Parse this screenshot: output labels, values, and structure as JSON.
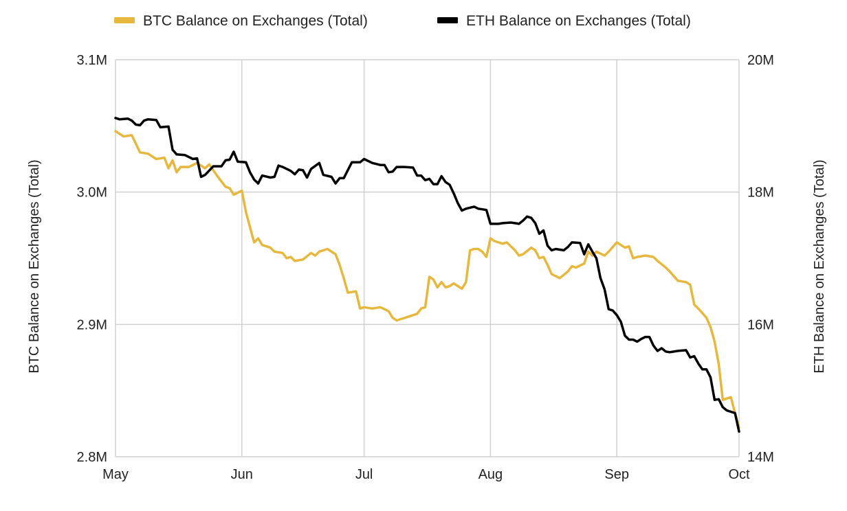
{
  "chart_data": {
    "type": "line",
    "legend": {
      "placement": "top-center"
    },
    "grid": true,
    "x": {
      "start": "2023-05-01",
      "end": "2023-10-01",
      "tick_labels": [
        "May",
        "Jun",
        "Jul",
        "Aug",
        "Sep",
        "Oct"
      ],
      "tick_dates": [
        "2023-05-01",
        "2023-06-01",
        "2023-07-01",
        "2023-08-01",
        "2023-09-01",
        "2023-10-01"
      ]
    },
    "y_left": {
      "label": "BTC Balance on Exchanges (Total)",
      "range": [
        2800000,
        3100000
      ],
      "tick_labels": [
        "2.8M",
        "2.9M",
        "3.0M",
        "3.1M"
      ],
      "tick_values": [
        2800000,
        2900000,
        3000000,
        3100000
      ]
    },
    "y_right": {
      "label": "ETH Balance on Exchanges (Total)",
      "range": [
        14000000,
        20000000
      ],
      "tick_labels": [
        "14M",
        "16M",
        "18M",
        "20M"
      ],
      "tick_values": [
        14000000,
        16000000,
        18000000,
        20000000
      ]
    },
    "series": [
      {
        "name": "BTC Balance on Exchanges (Total)",
        "axis": "left",
        "color": "#e6b83e",
        "points": [
          [
            "2023-05-01",
            3046000
          ],
          [
            "2023-05-03",
            3042000
          ],
          [
            "2023-05-05",
            3043000
          ],
          [
            "2023-05-07",
            3030000
          ],
          [
            "2023-05-09",
            3029000
          ],
          [
            "2023-05-11",
            3025000
          ],
          [
            "2023-05-13",
            3026000
          ],
          [
            "2023-05-14",
            3018000
          ],
          [
            "2023-05-15",
            3024000
          ],
          [
            "2023-05-16",
            3015000
          ],
          [
            "2023-05-17",
            3019000
          ],
          [
            "2023-05-19",
            3019000
          ],
          [
            "2023-05-21",
            3022000
          ],
          [
            "2023-05-23",
            3018000
          ],
          [
            "2023-05-24",
            3021000
          ],
          [
            "2023-05-26",
            3012000
          ],
          [
            "2023-05-28",
            3004000
          ],
          [
            "2023-05-29",
            3003000
          ],
          [
            "2023-05-30",
            2998000
          ],
          [
            "2023-06-01",
            3001000
          ],
          [
            "2023-06-02",
            2985000
          ],
          [
            "2023-06-04",
            2962000
          ],
          [
            "2023-06-05",
            2965000
          ],
          [
            "2023-06-06",
            2960000
          ],
          [
            "2023-06-08",
            2958000
          ],
          [
            "2023-06-09",
            2955000
          ],
          [
            "2023-06-11",
            2954000
          ],
          [
            "2023-06-12",
            2950000
          ],
          [
            "2023-06-13",
            2951000
          ],
          [
            "2023-06-14",
            2948000
          ],
          [
            "2023-06-16",
            2949000
          ],
          [
            "2023-06-18",
            2954000
          ],
          [
            "2023-06-19",
            2952000
          ],
          [
            "2023-06-20",
            2955000
          ],
          [
            "2023-06-22",
            2957000
          ],
          [
            "2023-06-24",
            2953000
          ],
          [
            "2023-06-25",
            2945000
          ],
          [
            "2023-06-26",
            2935000
          ],
          [
            "2023-06-27",
            2924000
          ],
          [
            "2023-06-29",
            2925000
          ],
          [
            "2023-06-30",
            2912000
          ],
          [
            "2023-07-01",
            2913000
          ],
          [
            "2023-07-03",
            2912000
          ],
          [
            "2023-07-05",
            2913000
          ],
          [
            "2023-07-07",
            2910000
          ],
          [
            "2023-07-08",
            2905000
          ],
          [
            "2023-07-09",
            2903000
          ],
          [
            "2023-07-10",
            2904000
          ],
          [
            "2023-07-12",
            2906000
          ],
          [
            "2023-07-14",
            2908000
          ],
          [
            "2023-07-15",
            2912000
          ],
          [
            "2023-07-16",
            2913000
          ],
          [
            "2023-07-17",
            2936000
          ],
          [
            "2023-07-18",
            2934000
          ],
          [
            "2023-07-19",
            2928000
          ],
          [
            "2023-07-20",
            2932000
          ],
          [
            "2023-07-21",
            2928000
          ],
          [
            "2023-07-22",
            2929000
          ],
          [
            "2023-07-23",
            2931000
          ],
          [
            "2023-07-24",
            2929000
          ],
          [
            "2023-07-25",
            2927000
          ],
          [
            "2023-07-26",
            2932000
          ],
          [
            "2023-07-27",
            2956000
          ],
          [
            "2023-07-28",
            2957000
          ],
          [
            "2023-07-29",
            2957000
          ],
          [
            "2023-07-30",
            2955000
          ],
          [
            "2023-07-31",
            2951000
          ],
          [
            "2023-08-01",
            2965000
          ],
          [
            "2023-08-02",
            2963000
          ],
          [
            "2023-08-04",
            2961000
          ],
          [
            "2023-08-05",
            2962000
          ],
          [
            "2023-08-07",
            2956000
          ],
          [
            "2023-08-08",
            2952000
          ],
          [
            "2023-08-09",
            2953000
          ],
          [
            "2023-08-11",
            2958000
          ],
          [
            "2023-08-12",
            2956000
          ],
          [
            "2023-08-13",
            2950000
          ],
          [
            "2023-08-14",
            2951000
          ],
          [
            "2023-08-15",
            2945000
          ],
          [
            "2023-08-16",
            2938000
          ],
          [
            "2023-08-18",
            2935000
          ],
          [
            "2023-08-20",
            2940000
          ],
          [
            "2023-08-21",
            2944000
          ],
          [
            "2023-08-22",
            2943000
          ],
          [
            "2023-08-24",
            2946000
          ],
          [
            "2023-08-25",
            2955000
          ],
          [
            "2023-08-26",
            2952000
          ],
          [
            "2023-08-27",
            2955000
          ],
          [
            "2023-08-29",
            2952000
          ],
          [
            "2023-08-30",
            2955000
          ],
          [
            "2023-09-01",
            2962000
          ],
          [
            "2023-09-02",
            2960000
          ],
          [
            "2023-09-03",
            2958000
          ],
          [
            "2023-09-04",
            2959000
          ],
          [
            "2023-09-05",
            2950000
          ],
          [
            "2023-09-06",
            2951000
          ],
          [
            "2023-09-08",
            2952000
          ],
          [
            "2023-09-10",
            2951000
          ],
          [
            "2023-09-11",
            2948000
          ],
          [
            "2023-09-13",
            2943000
          ],
          [
            "2023-09-14",
            2940000
          ],
          [
            "2023-09-16",
            2933000
          ],
          [
            "2023-09-18",
            2932000
          ],
          [
            "2023-09-19",
            2930000
          ],
          [
            "2023-09-20",
            2915000
          ],
          [
            "2023-09-21",
            2912000
          ],
          [
            "2023-09-23",
            2905000
          ],
          [
            "2023-09-24",
            2898000
          ],
          [
            "2023-09-25",
            2887000
          ],
          [
            "2023-09-26",
            2870000
          ],
          [
            "2023-09-27",
            2843000
          ],
          [
            "2023-09-28",
            2844000
          ],
          [
            "2023-09-29",
            2845000
          ],
          [
            "2023-09-30",
            2833000
          ],
          [
            "2023-10-01",
            2822000
          ]
        ]
      },
      {
        "name": "ETH Balance on Exchanges (Total)",
        "axis": "right",
        "color": "#000000",
        "points": [
          [
            "2023-05-01",
            19120000
          ],
          [
            "2023-05-02",
            19100000
          ],
          [
            "2023-05-04",
            19110000
          ],
          [
            "2023-05-05",
            19080000
          ],
          [
            "2023-05-06",
            19020000
          ],
          [
            "2023-05-07",
            19010000
          ],
          [
            "2023-05-08",
            19080000
          ],
          [
            "2023-05-09",
            19100000
          ],
          [
            "2023-05-11",
            19090000
          ],
          [
            "2023-05-12",
            18980000
          ],
          [
            "2023-05-14",
            18990000
          ],
          [
            "2023-05-15",
            18640000
          ],
          [
            "2023-05-16",
            18570000
          ],
          [
            "2023-05-18",
            18560000
          ],
          [
            "2023-05-20",
            18500000
          ],
          [
            "2023-05-21",
            18510000
          ],
          [
            "2023-05-22",
            18230000
          ],
          [
            "2023-05-23",
            18260000
          ],
          [
            "2023-05-25",
            18390000
          ],
          [
            "2023-05-27",
            18390000
          ],
          [
            "2023-05-28",
            18480000
          ],
          [
            "2023-05-29",
            18490000
          ],
          [
            "2023-05-30",
            18610000
          ],
          [
            "2023-05-31",
            18460000
          ],
          [
            "2023-06-02",
            18450000
          ],
          [
            "2023-06-03",
            18300000
          ],
          [
            "2023-06-04",
            18190000
          ],
          [
            "2023-06-05",
            18130000
          ],
          [
            "2023-06-06",
            18250000
          ],
          [
            "2023-06-08",
            18220000
          ],
          [
            "2023-06-09",
            18230000
          ],
          [
            "2023-06-10",
            18400000
          ],
          [
            "2023-06-11",
            18380000
          ],
          [
            "2023-06-13",
            18320000
          ],
          [
            "2023-06-14",
            18270000
          ],
          [
            "2023-06-15",
            18340000
          ],
          [
            "2023-06-16",
            18330000
          ],
          [
            "2023-06-17",
            18220000
          ],
          [
            "2023-06-18",
            18350000
          ],
          [
            "2023-06-20",
            18440000
          ],
          [
            "2023-06-21",
            18260000
          ],
          [
            "2023-06-23",
            18230000
          ],
          [
            "2023-06-24",
            18130000
          ],
          [
            "2023-06-25",
            18210000
          ],
          [
            "2023-06-26",
            18210000
          ],
          [
            "2023-06-28",
            18450000
          ],
          [
            "2023-06-30",
            18450000
          ],
          [
            "2023-07-01",
            18500000
          ],
          [
            "2023-07-03",
            18440000
          ],
          [
            "2023-07-05",
            18410000
          ],
          [
            "2023-07-06",
            18410000
          ],
          [
            "2023-07-07",
            18300000
          ],
          [
            "2023-07-08",
            18310000
          ],
          [
            "2023-07-09",
            18380000
          ],
          [
            "2023-07-11",
            18380000
          ],
          [
            "2023-07-13",
            18370000
          ],
          [
            "2023-07-14",
            18250000
          ],
          [
            "2023-07-15",
            18250000
          ],
          [
            "2023-07-16",
            18180000
          ],
          [
            "2023-07-17",
            18200000
          ],
          [
            "2023-07-18",
            18120000
          ],
          [
            "2023-07-19",
            18120000
          ],
          [
            "2023-07-20",
            18240000
          ],
          [
            "2023-07-21",
            18150000
          ],
          [
            "2023-07-22",
            18110000
          ],
          [
            "2023-07-23",
            17980000
          ],
          [
            "2023-07-24",
            17830000
          ],
          [
            "2023-07-25",
            17720000
          ],
          [
            "2023-07-26",
            17750000
          ],
          [
            "2023-07-28",
            17780000
          ],
          [
            "2023-07-29",
            17750000
          ],
          [
            "2023-07-31",
            17730000
          ],
          [
            "2023-08-01",
            17520000
          ],
          [
            "2023-08-03",
            17520000
          ],
          [
            "2023-08-04",
            17530000
          ],
          [
            "2023-08-06",
            17540000
          ],
          [
            "2023-08-07",
            17530000
          ],
          [
            "2023-08-08",
            17520000
          ],
          [
            "2023-08-09",
            17570000
          ],
          [
            "2023-08-10",
            17630000
          ],
          [
            "2023-08-11",
            17610000
          ],
          [
            "2023-08-12",
            17530000
          ],
          [
            "2023-08-13",
            17370000
          ],
          [
            "2023-08-14",
            17420000
          ],
          [
            "2023-08-15",
            17190000
          ],
          [
            "2023-08-16",
            17120000
          ],
          [
            "2023-08-17",
            17140000
          ],
          [
            "2023-08-19",
            17120000
          ],
          [
            "2023-08-20",
            17170000
          ],
          [
            "2023-08-21",
            17240000
          ],
          [
            "2023-08-23",
            17230000
          ],
          [
            "2023-08-24",
            17060000
          ],
          [
            "2023-08-25",
            17210000
          ],
          [
            "2023-08-26",
            17100000
          ],
          [
            "2023-08-27",
            17000000
          ],
          [
            "2023-08-28",
            16700000
          ],
          [
            "2023-08-29",
            16530000
          ],
          [
            "2023-08-30",
            16230000
          ],
          [
            "2023-08-31",
            16210000
          ],
          [
            "2023-09-01",
            16140000
          ],
          [
            "2023-09-02",
            16040000
          ],
          [
            "2023-09-03",
            15830000
          ],
          [
            "2023-09-04",
            15770000
          ],
          [
            "2023-09-05",
            15770000
          ],
          [
            "2023-09-06",
            15740000
          ],
          [
            "2023-09-07",
            15780000
          ],
          [
            "2023-09-08",
            15810000
          ],
          [
            "2023-09-09",
            15810000
          ],
          [
            "2023-09-10",
            15680000
          ],
          [
            "2023-09-11",
            15600000
          ],
          [
            "2023-09-12",
            15640000
          ],
          [
            "2023-09-13",
            15590000
          ],
          [
            "2023-09-14",
            15580000
          ],
          [
            "2023-09-16",
            15600000
          ],
          [
            "2023-09-18",
            15610000
          ],
          [
            "2023-09-19",
            15500000
          ],
          [
            "2023-09-20",
            15520000
          ],
          [
            "2023-09-21",
            15410000
          ],
          [
            "2023-09-22",
            15320000
          ],
          [
            "2023-09-23",
            15320000
          ],
          [
            "2023-09-24",
            15200000
          ],
          [
            "2023-09-25",
            14860000
          ],
          [
            "2023-09-26",
            14870000
          ],
          [
            "2023-09-27",
            14750000
          ],
          [
            "2023-09-28",
            14700000
          ],
          [
            "2023-09-29",
            14680000
          ],
          [
            "2023-09-30",
            14660000
          ],
          [
            "2023-10-01",
            14380000
          ]
        ]
      }
    ]
  }
}
